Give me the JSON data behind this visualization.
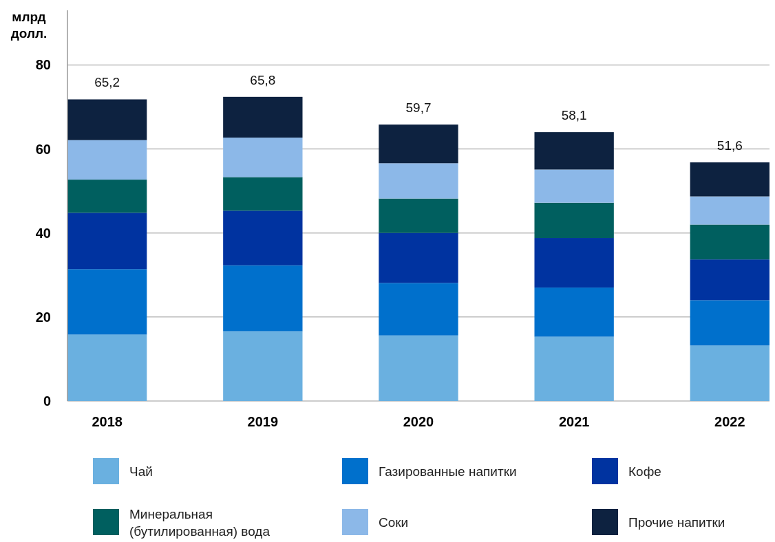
{
  "chart_data": {
    "type": "bar",
    "stacked": true,
    "ylabel": "млрд долл.",
    "categories": [
      "2018",
      "2019",
      "2020",
      "2021",
      "2022"
    ],
    "series": [
      {
        "name": "Чай",
        "color": "#6ab0e0",
        "values": [
          15.8,
          16.6,
          15.6,
          15.3,
          13.2
        ]
      },
      {
        "name": "Газированные напитки",
        "color": "#0070cc",
        "values": [
          15.6,
          15.7,
          12.5,
          11.7,
          10.8
        ]
      },
      {
        "name": "Кофе",
        "color": "#0033a0",
        "values": [
          13.4,
          13.0,
          11.9,
          11.8,
          9.7
        ]
      },
      {
        "name": "Минеральная (бутилированная) вода",
        "color": "#005f5f",
        "values": [
          7.9,
          8.0,
          8.2,
          8.4,
          8.3
        ]
      },
      {
        "name": "Соки",
        "color": "#8cb8e8",
        "values": [
          9.4,
          9.4,
          8.4,
          7.9,
          6.7
        ]
      },
      {
        "name": "Прочие напитки",
        "color": "#0d2240",
        "values": [
          9.7,
          9.7,
          9.2,
          8.9,
          8.1
        ]
      }
    ],
    "annotations": [
      {
        "text": "65,2",
        "x": "2018",
        "y": 71.8
      },
      {
        "text": "65,8",
        "x": "2019",
        "y": 72.4
      },
      {
        "text": "59,7",
        "x": "2020",
        "y": 65.8
      },
      {
        "text": "58,1",
        "x": "2021",
        "y": 64.0
      },
      {
        "text": "51,6",
        "x": "2022",
        "y": 56.8
      }
    ],
    "ylim": [
      0,
      93
    ],
    "yticks": [
      0,
      20,
      40,
      60,
      80
    ],
    "grid": "y",
    "legend": "bottom"
  }
}
